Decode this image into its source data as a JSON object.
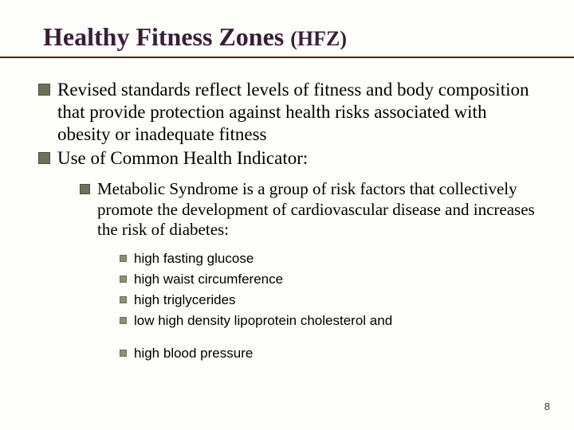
{
  "title_main": "Healthy Fitness Zones ",
  "title_abbr": "(HFZ)",
  "bullets_level1": [
    "Revised standards reflect levels of fitness and body composition that provide protection against health risks associated with obesity or inadequate fitness",
    "Use of Common Health Indicator:"
  ],
  "bullet_level2": "Metabolic Syndrome is a group of risk factors that collectively promote the development of cardiovascular disease and increases the risk of diabetes:",
  "bullets_level3": [
    "high fasting glucose",
    "high waist circumference",
    "high triglycerides",
    "low high density lipoprotein cholesterol and",
    "high blood pressure"
  ],
  "page_number": "8",
  "colors": {
    "background": "#fdfdf9",
    "title_color": "#3a1d3a",
    "underline_color": "#3a2b1a",
    "bullet_fill": "#6b7257",
    "bullet_border": "#4a5038",
    "bullet_small_fill": "#8a9072"
  }
}
